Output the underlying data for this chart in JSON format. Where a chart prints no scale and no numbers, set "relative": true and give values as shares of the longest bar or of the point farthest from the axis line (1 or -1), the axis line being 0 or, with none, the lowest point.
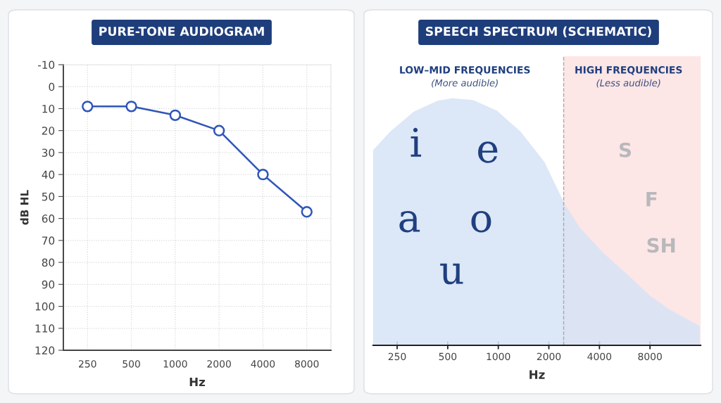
{
  "chart_data": [
    {
      "type": "line",
      "title": "PURE-TONE AUDIOGRAM",
      "xlabel": "Hz",
      "ylabel": "dB HL",
      "categories": [
        "250",
        "500",
        "1000",
        "2000",
        "4000",
        "8000"
      ],
      "series": [
        {
          "color": "#2f55b8",
          "values": [
            9,
            9,
            13,
            20,
            40,
            57
          ]
        }
      ],
      "ylim": [
        120,
        -10
      ],
      "yticks": [
        -10,
        0,
        10,
        20,
        30,
        40,
        50,
        60,
        70,
        80,
        90,
        100,
        110,
        120
      ],
      "grid": true,
      "marker": "circle",
      "line_style": "solid"
    },
    {
      "type": "area",
      "title": "SPEECH SPECTRUM (SCHEMATIC)",
      "xlabel": "Hz",
      "relative": true,
      "log": "x",
      "xlim": [
        180,
        16000
      ],
      "xticks": [
        250,
        500,
        1000,
        2000,
        4000,
        8000
      ],
      "series": [
        {
          "color": "#d6e3f6",
          "x": [
            180,
            227,
            314,
            435,
            528,
            708,
            981,
            1358,
            1881,
            2488,
            3063,
            4242,
            5871,
            8000,
            10510,
            15800
          ],
          "values": [
            0.79,
            0.865,
            0.946,
            0.99,
            1.0,
            0.993,
            0.95,
            0.865,
            0.742,
            0.571,
            0.476,
            0.372,
            0.287,
            0.201,
            0.144,
            0.078
          ]
        }
      ],
      "bands": [
        {
          "axis": "x",
          "from": 2450,
          "to": 16000,
          "color": "#fde6e6"
        }
      ],
      "ref_lines": [
        {
          "axis": "x",
          "value": 2450,
          "color": "#aaaaaa",
          "line_style": "dashed"
        }
      ],
      "annotations": [
        "LOW–MID FREQUENCIES",
        "(More audible)",
        "HIGH FREQUENCIES",
        "(Less audible)",
        "i",
        "e",
        "a",
        "o",
        "u",
        "S",
        "F",
        "SH"
      ],
      "grid": false
    }
  ]
}
